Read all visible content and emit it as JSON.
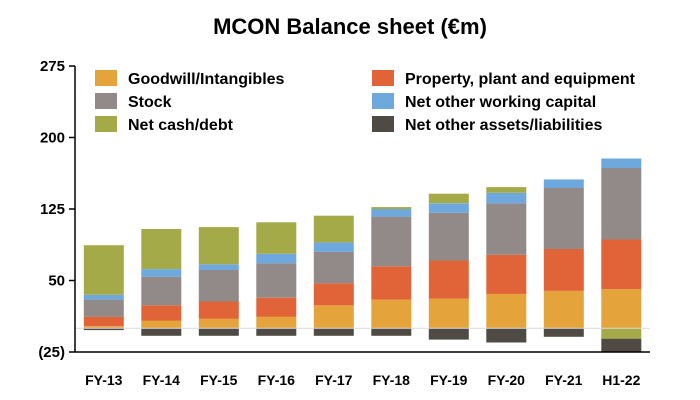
{
  "chart_data": {
    "type": "bar",
    "stacked": true,
    "title": "MCON Balance sheet (€m)",
    "xlabel": "",
    "ylabel": "",
    "ylim": [
      -25,
      275
    ],
    "yticks": [
      -25,
      50,
      125,
      200,
      275
    ],
    "ytick_labels": [
      "(25)",
      "50",
      "125",
      "200",
      "275"
    ],
    "grid": false,
    "legend_position": "top-left",
    "categories": [
      "FY-13",
      "FY-14",
      "FY-15",
      "FY-16",
      "FY-17",
      "FY-18",
      "FY-19",
      "FY-20",
      "FY-21",
      "H1-22"
    ],
    "series": [
      {
        "name": "Goodwill/Intangibles",
        "color": "#E5A33B",
        "values": [
          2,
          8,
          10,
          12,
          24,
          30,
          31,
          36,
          39,
          41
        ]
      },
      {
        "name": "Property, plant and equipment",
        "color": "#E06437",
        "values": [
          10,
          16,
          18,
          20,
          23,
          35,
          40,
          41,
          44,
          52
        ]
      },
      {
        "name": "Stock",
        "color": "#928A88",
        "values": [
          18,
          30,
          33,
          36,
          33,
          52,
          50,
          54,
          64,
          75
        ]
      },
      {
        "name": "Net other working capital",
        "color": "#6FA8DC",
        "values": [
          5,
          8,
          6,
          10,
          10,
          8,
          10,
          11,
          9,
          10
        ]
      },
      {
        "name": "Net cash/debt",
        "color": "#A4AA48",
        "values": [
          52,
          42,
          39,
          33,
          28,
          2,
          10,
          6,
          0,
          -11
        ]
      },
      {
        "name": "Net other assets/liabilities",
        "color": "#4F4A44",
        "values": [
          -2,
          -8,
          -8,
          -8,
          -8,
          -8,
          -12,
          -15,
          -9,
          -14
        ]
      }
    ]
  }
}
